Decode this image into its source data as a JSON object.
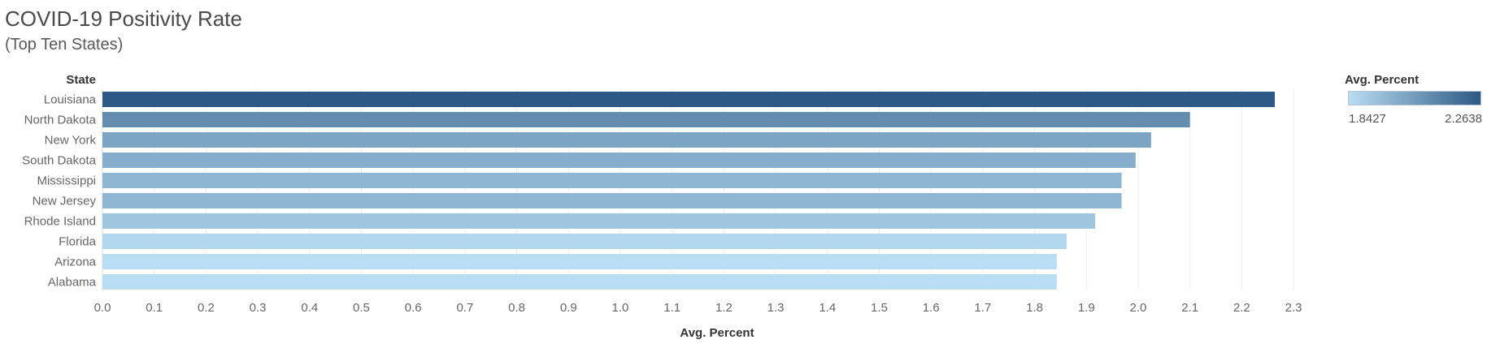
{
  "chart_data": {
    "type": "bar",
    "orientation": "horizontal",
    "title": "COVID-19 Positivity Rate",
    "subtitle": "(Top Ten States)",
    "row_header": "State",
    "xlabel": "Avg. Percent",
    "categories": [
      "Louisiana",
      "North Dakota",
      "New York",
      "South Dakota",
      "Mississippi",
      "New Jersey",
      "Rhode Island",
      "Florida",
      "Arizona",
      "Alabama"
    ],
    "values": [
      2.2638,
      2.1,
      2.025,
      1.995,
      1.968,
      1.968,
      1.917,
      1.862,
      1.8427,
      1.8427
    ],
    "xlim": [
      0,
      2.38
    ],
    "xticks": [
      0.0,
      0.1,
      0.2,
      0.3,
      0.4,
      0.5,
      0.6,
      0.7,
      0.8,
      0.9,
      1.0,
      1.1,
      1.2,
      1.3,
      1.4,
      1.5,
      1.6,
      1.7,
      1.8,
      1.9,
      2.0,
      2.1,
      2.2,
      2.3
    ],
    "grid": true,
    "legend": {
      "title": "Avg. Percent",
      "min_label": "1.8427",
      "max_label": "2.2638",
      "min": 1.8427,
      "max": 2.2638,
      "color_low": "#b9ddf2",
      "color_high": "#2c5985",
      "placement": "top-right"
    }
  }
}
